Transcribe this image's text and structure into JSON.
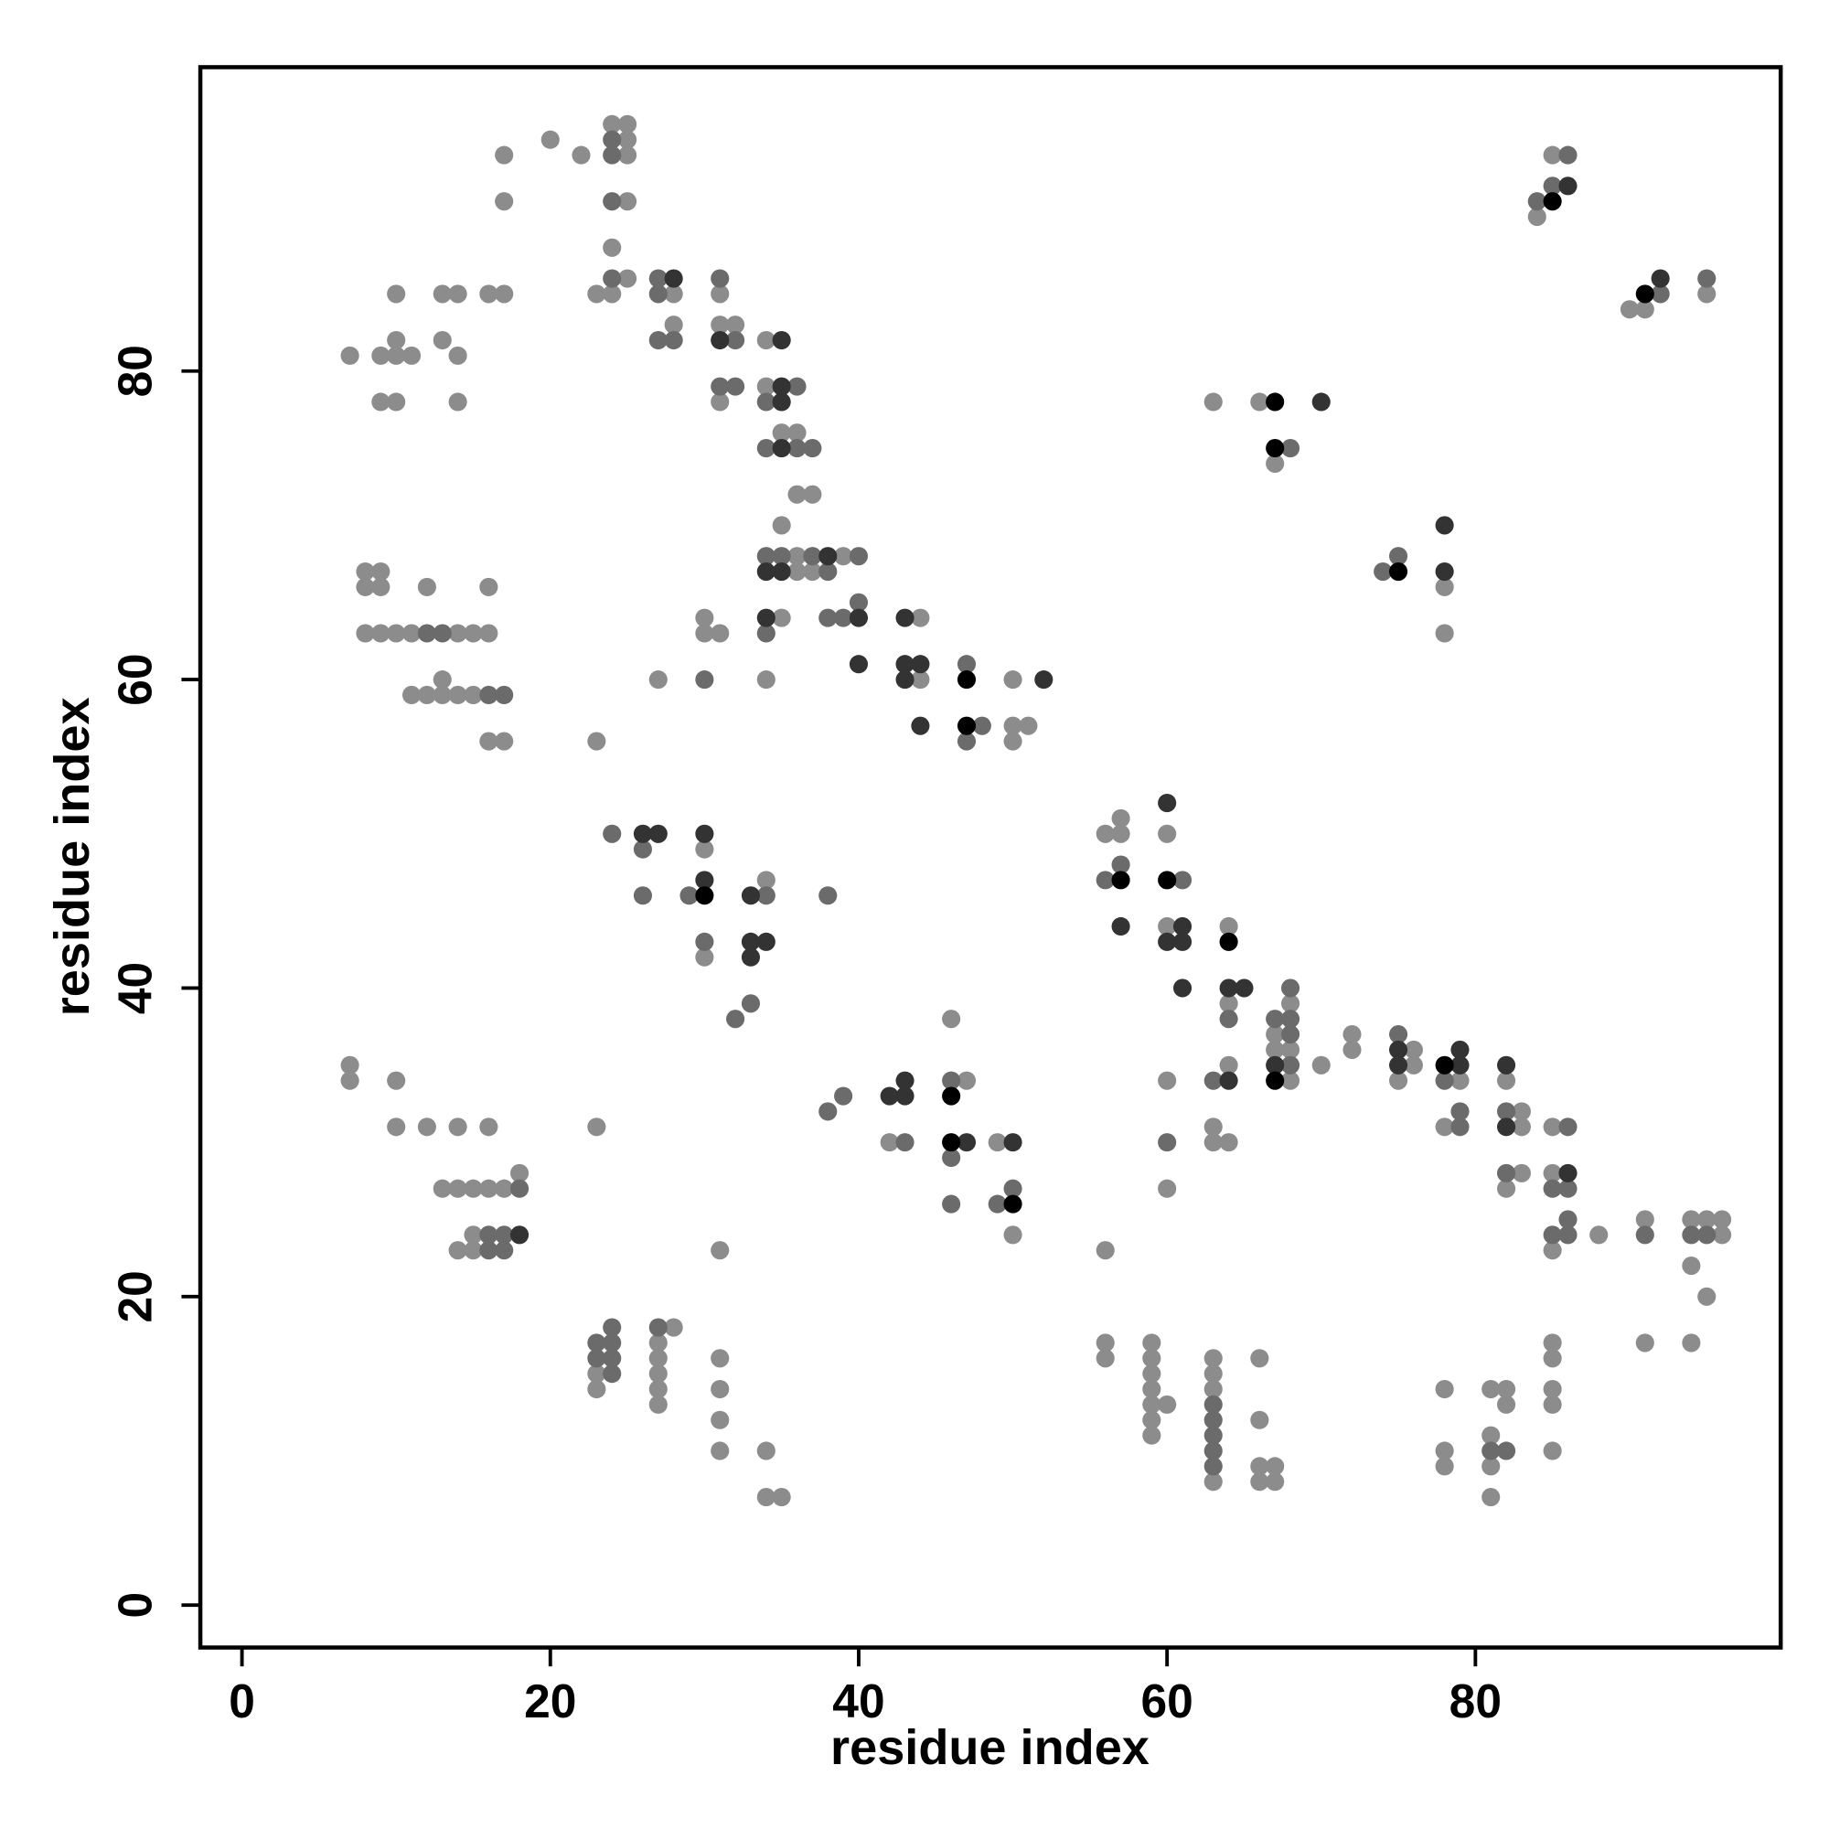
{
  "chart_data": {
    "type": "scatter",
    "xlabel": "residue index",
    "ylabel": "residue index",
    "xlim": [
      -2.7,
      99.8
    ],
    "ylim": [
      -2.75,
      99.7
    ],
    "xticks": [
      0,
      20,
      40,
      60,
      80
    ],
    "yticks": [
      0,
      20,
      40,
      60,
      80
    ],
    "series": [
      {
        "color": "#8c8c8c",
        "x": [
          7,
          9,
          10,
          11,
          10,
          9,
          10,
          10,
          13,
          14,
          13,
          14,
          14,
          16,
          17,
          17,
          17,
          20,
          22,
          24,
          25,
          25,
          25,
          25,
          24,
          25,
          23,
          24,
          28,
          28,
          31,
          31,
          32,
          31,
          34,
          34,
          35,
          36,
          36,
          37,
          35,
          36,
          39,
          36,
          37,
          35,
          30,
          30,
          31,
          27,
          34,
          44,
          44,
          50,
          50,
          51,
          50,
          23,
          8,
          9,
          8,
          9,
          8,
          9,
          10,
          11,
          14,
          15,
          16,
          12,
          16,
          13,
          11,
          12,
          13,
          14,
          15,
          16,
          17,
          30,
          30,
          34,
          7,
          7,
          10,
          10,
          12,
          14,
          16,
          13,
          14,
          15,
          16,
          17,
          18,
          15,
          14,
          15,
          23,
          31,
          23,
          23,
          28,
          27,
          27,
          27,
          27,
          27,
          31,
          31,
          31,
          31,
          34,
          34,
          35,
          42,
          46,
          47,
          49,
          50,
          56,
          57,
          57,
          56,
          60,
          60,
          64,
          64,
          64,
          63,
          63,
          64,
          60,
          60,
          68,
          67,
          67,
          68,
          68,
          70,
          72,
          72,
          76,
          76,
          75,
          79,
          78,
          82,
          83,
          83,
          83,
          82,
          85,
          85,
          85,
          88,
          91,
          94,
          95,
          96,
          96,
          94,
          95,
          91,
          94,
          84,
          85,
          90,
          91,
          95,
          63,
          66,
          67,
          78,
          78,
          56,
          56,
          59,
          59,
          59,
          59,
          59,
          60,
          59,
          59,
          63,
          63,
          63,
          63,
          66,
          66,
          66,
          67,
          66,
          67,
          78,
          78,
          78,
          81,
          82,
          82,
          81,
          81,
          81,
          85,
          85,
          85,
          85,
          85
        ],
        "y": [
          81,
          81,
          81,
          81,
          82,
          78,
          78,
          85,
          85,
          85,
          82,
          81,
          78,
          85,
          85,
          91,
          94,
          95,
          94,
          96,
          96,
          95,
          94,
          91,
          88,
          86,
          85,
          85,
          85,
          83,
          85,
          83,
          83,
          78,
          82,
          79,
          76,
          76,
          72,
          72,
          70,
          68,
          68,
          67,
          67,
          64,
          64,
          63,
          63,
          60,
          60,
          64,
          60,
          60,
          57,
          57,
          56,
          56,
          67,
          67,
          66,
          66,
          63,
          63,
          63,
          63,
          63,
          63,
          63,
          66,
          66,
          60,
          59,
          59,
          59,
          59,
          59,
          56,
          56,
          49,
          42,
          47,
          35,
          34,
          34,
          31,
          31,
          31,
          31,
          27,
          27,
          27,
          27,
          27,
          28,
          24,
          23,
          23,
          31,
          23,
          15,
          14,
          18,
          17,
          16,
          15,
          14,
          13,
          16,
          14,
          12,
          10,
          10,
          7,
          7,
          30,
          38,
          34,
          30,
          24,
          50,
          51,
          50,
          23,
          50,
          44,
          44,
          39,
          35,
          31,
          30,
          30,
          34,
          27,
          39,
          37,
          36,
          36,
          34,
          35,
          37,
          36,
          36,
          35,
          34,
          34,
          31,
          34,
          32,
          31,
          28,
          27,
          31,
          28,
          23,
          24,
          25,
          25,
          25,
          25,
          24,
          22,
          20,
          17,
          17,
          90,
          94,
          84,
          84,
          85,
          78,
          78,
          74,
          66,
          63,
          17,
          16,
          17,
          16,
          15,
          14,
          13,
          13,
          12,
          11,
          16,
          15,
          14,
          8,
          16,
          12,
          9,
          9,
          8,
          8,
          14,
          10,
          9,
          14,
          14,
          13,
          11,
          9,
          7,
          17,
          16,
          14,
          13,
          10
        ]
      },
      {
        "color": "#6b6b6b",
        "x": [
          24,
          24,
          24,
          24,
          27,
          27,
          27,
          28,
          31,
          32,
          31,
          32,
          36,
          34,
          36,
          37,
          34,
          34,
          35,
          37,
          40,
          38,
          34,
          38,
          39,
          40,
          30,
          47,
          48,
          47,
          12,
          13,
          16,
          17,
          24,
          26,
          26,
          29,
          30,
          34,
          33,
          32,
          38,
          18,
          16,
          17,
          16,
          17,
          23,
          24,
          24,
          23,
          24,
          24,
          27,
          38,
          39,
          43,
          46,
          46,
          46,
          49,
          50,
          57,
          56,
          61,
          64,
          63,
          60,
          67,
          68,
          68,
          68,
          68,
          75,
          78,
          79,
          79,
          82,
          82,
          86,
          85,
          86,
          86,
          85,
          86,
          91,
          94,
          95,
          84,
          85,
          86,
          92,
          95,
          68,
          74,
          75,
          63,
          63,
          63,
          63,
          63,
          81,
          82
        ],
        "y": [
          95,
          94,
          91,
          86,
          86,
          85,
          82,
          82,
          86,
          82,
          79,
          79,
          79,
          78,
          75,
          75,
          75,
          68,
          68,
          68,
          68,
          67,
          63,
          64,
          64,
          65,
          60,
          61,
          57,
          56,
          63,
          63,
          59,
          59,
          50,
          49,
          46,
          46,
          43,
          46,
          39,
          38,
          46,
          27,
          24,
          24,
          23,
          23,
          17,
          17,
          18,
          16,
          16,
          15,
          18,
          32,
          33,
          30,
          34,
          29,
          26,
          26,
          27,
          48,
          47,
          47,
          38,
          34,
          30,
          38,
          38,
          40,
          37,
          35,
          37,
          34,
          31,
          32,
          32,
          28,
          31,
          27,
          27,
          25,
          24,
          24,
          24,
          24,
          24,
          91,
          92,
          94,
          85,
          86,
          75,
          67,
          68,
          13,
          12,
          11,
          10,
          9,
          10,
          10
        ]
      },
      {
        "color": "#333333",
        "x": [
          28,
          31,
          35,
          35,
          35,
          35,
          38,
          34,
          35,
          34,
          40,
          40,
          43,
          43,
          44,
          43,
          44,
          52,
          18,
          26,
          27,
          30,
          30,
          33,
          33,
          34,
          33,
          42,
          43,
          43,
          47,
          50,
          57,
          60,
          61,
          60,
          61,
          61,
          64,
          65,
          64,
          67,
          75,
          75,
          79,
          79,
          82,
          82,
          86,
          86,
          92,
          70,
          78,
          78
        ],
        "y": [
          86,
          82,
          82,
          79,
          78,
          75,
          68,
          67,
          67,
          64,
          64,
          61,
          64,
          61,
          61,
          60,
          57,
          60,
          24,
          50,
          50,
          50,
          47,
          46,
          43,
          43,
          42,
          33,
          33,
          34,
          30,
          30,
          44,
          52,
          44,
          43,
          43,
          40,
          40,
          40,
          34,
          35,
          36,
          35,
          35,
          36,
          35,
          31,
          28,
          92,
          86,
          78,
          70,
          67
        ]
      },
      {
        "color": "#000000",
        "x": [
          47,
          47,
          30,
          46,
          46,
          50,
          57,
          60,
          64,
          67,
          78,
          85,
          91,
          67,
          67,
          75
        ],
        "y": [
          60,
          57,
          46,
          33,
          30,
          26,
          47,
          47,
          43,
          34,
          35,
          91,
          85,
          78,
          75,
          67
        ]
      }
    ]
  }
}
